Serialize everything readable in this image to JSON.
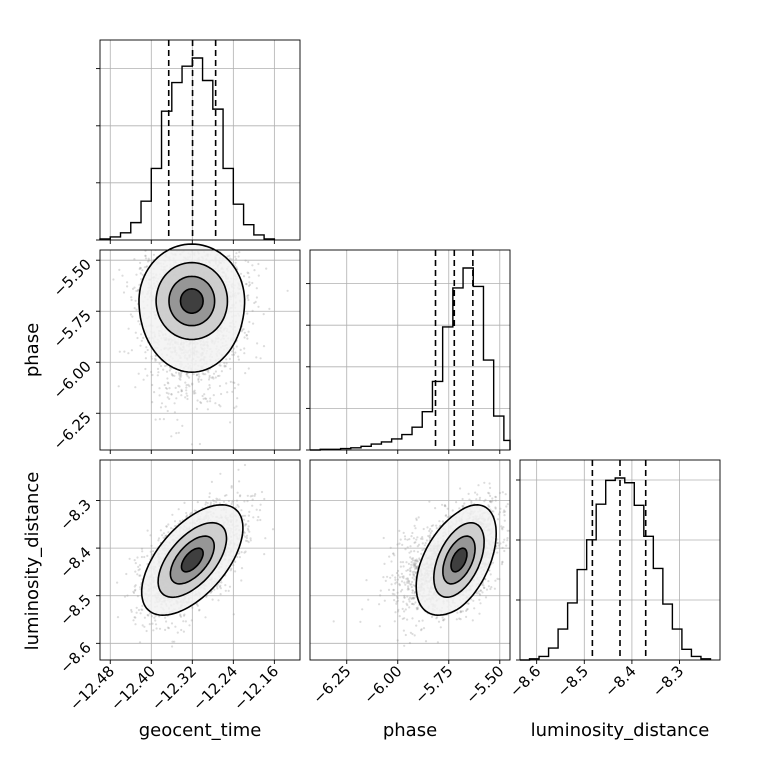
{
  "chart_data": {
    "type": "corner",
    "parameters": [
      "geocent_time",
      "phase",
      "luminosity_distance"
    ],
    "axis_labels": {
      "x": [
        "geocent_time",
        "phase",
        "luminosity_distance"
      ],
      "y": [
        "phase",
        "luminosity_distance"
      ]
    },
    "ranges": {
      "geocent_time": [
        -12.5,
        -12.11
      ],
      "phase": [
        -6.43,
        -5.45
      ],
      "luminosity_distance": [
        -8.635,
        -8.215
      ]
    },
    "ticks": {
      "geocent_time": [
        -12.48,
        -12.4,
        -12.32,
        -12.24,
        -12.16
      ],
      "phase": [
        -6.25,
        -6.0,
        -5.75,
        -5.5
      ],
      "luminosity_distance_x": [
        -8.6,
        -8.5,
        -8.4,
        -8.3
      ],
      "luminosity_distance_y": [
        -8.3,
        -8.4,
        -8.5,
        -8.6
      ]
    },
    "tick_labels": {
      "geocent_time": [
        "−12.48",
        "−12.40",
        "−12.32",
        "−12.24",
        "−12.16"
      ],
      "phase": [
        "−6.25",
        "−6.00",
        "−5.75",
        "−5.50"
      ],
      "luminosity_distance_x": [
        "−8.6",
        "−8.5",
        "−8.4",
        "−8.3"
      ],
      "luminosity_distance_y": [
        "−8.3",
        "−8.4",
        "−8.5",
        "−8.6"
      ]
    },
    "histograms": {
      "geocent_time": {
        "edges": [
          -12.5,
          -12.48,
          -12.46,
          -12.44,
          -12.42,
          -12.4,
          -12.38,
          -12.36,
          -12.34,
          -12.32,
          -12.3,
          -12.28,
          -12.26,
          -12.24,
          -12.22,
          -12.2,
          -12.18,
          -12.16
        ],
        "counts": [
          1,
          3,
          7,
          17,
          38,
          70,
          126,
          154,
          170,
          178,
          156,
          128,
          70,
          35,
          15,
          5,
          1
        ],
        "quantiles": [
          -12.366,
          -12.3195,
          -12.2745
        ]
      },
      "phase": {
        "edges": [
          -6.43,
          -6.38,
          -6.33,
          -6.28,
          -6.23,
          -6.18,
          -6.13,
          -6.08,
          -6.03,
          -5.98,
          -5.93,
          -5.88,
          -5.83,
          -5.78,
          -5.73,
          -5.68,
          -5.63,
          -5.58,
          -5.53,
          -5.48,
          -5.45
        ],
        "counts": [
          0,
          1,
          1,
          2,
          3,
          5,
          8,
          11,
          15,
          21,
          31,
          52,
          93,
          167,
          220,
          247,
          222,
          122,
          46,
          13
        ],
        "quantiles": [
          -5.815,
          -5.723,
          -5.632
        ]
      },
      "luminosity_distance": {
        "edges": [
          -8.635,
          -8.615,
          -8.595,
          -8.575,
          -8.555,
          -8.535,
          -8.515,
          -8.495,
          -8.475,
          -8.455,
          -8.435,
          -8.415,
          -8.395,
          -8.375,
          -8.355,
          -8.335,
          -8.315,
          -8.295,
          -8.275,
          -8.255,
          -8.235
        ],
        "counts": [
          0,
          1,
          3,
          10,
          26,
          48,
          76,
          101,
          131,
          151,
          153,
          149,
          130,
          104,
          77,
          47,
          26,
          9,
          3,
          1
        ],
        "quantiles": [
          -8.483,
          -8.425,
          -8.371
        ]
      }
    },
    "joint": [
      {
        "x": "geocent_time",
        "y": "phase",
        "center": [
          -12.321,
          -5.7
        ],
        "sigma": [
          0.048,
          0.13
        ],
        "rho": 0.0,
        "tail": "y-low",
        "contour_fractions": [
          0.9,
          0.65,
          0.35,
          0.1
        ]
      },
      {
        "x": "geocent_time",
        "y": "luminosity_distance",
        "center": [
          -12.32,
          -8.425
        ],
        "sigma": [
          0.046,
          0.054
        ],
        "rho": 0.58,
        "tail": "none",
        "contour_fractions": [
          0.9,
          0.65,
          0.35,
          0.1
        ]
      },
      {
        "x": "phase",
        "y": "luminosity_distance",
        "center": [
          -5.7,
          -8.425
        ],
        "sigma": [
          0.085,
          0.054
        ],
        "rho": 0.48,
        "tail": "x-low",
        "contour_fractions": [
          0.9,
          0.65,
          0.35,
          0.1
        ]
      }
    ]
  }
}
